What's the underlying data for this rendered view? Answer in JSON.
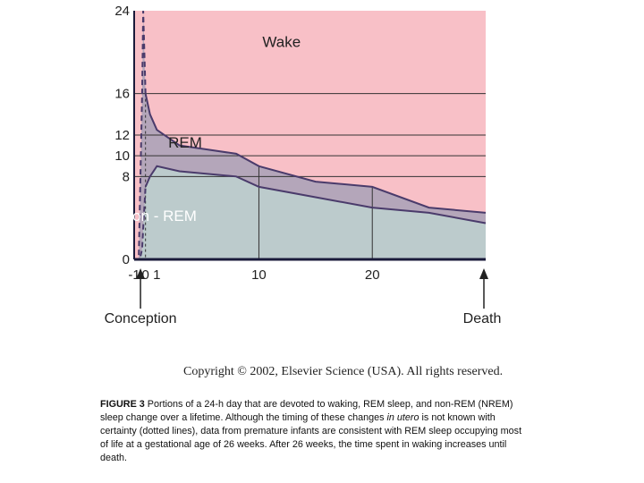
{
  "chart_data": {
    "type": "area",
    "title": "",
    "xlabel": "",
    "ylabel": "",
    "ylim": [
      0,
      24
    ],
    "y_ticks": [
      "24",
      "16",
      "12",
      "10",
      "8",
      "0"
    ],
    "y_tick_values": [
      24,
      16,
      12,
      10,
      8,
      0
    ],
    "x_ticks": [
      "-1",
      "0",
      "1",
      "10",
      "20"
    ],
    "regions": [
      {
        "name": "Wake",
        "color": "#f8c0c7"
      },
      {
        "name": "REM",
        "color": "#b4a6ba"
      },
      {
        "name": "Non - REM",
        "color": "#bccbcc"
      }
    ],
    "x_stage": [
      -1,
      -0.6,
      -0.5,
      -0.3,
      -0.2,
      0,
      0.4,
      1,
      3,
      8,
      10,
      15,
      20,
      25,
      30
    ],
    "sleep_total_upper_boundary": [
      0,
      0,
      5,
      16,
      24,
      16,
      14,
      12.5,
      11,
      10.2,
      9,
      7.5,
      7,
      5,
      4.5
    ],
    "nrem_upper_boundary": [
      0,
      0,
      0,
      1,
      3,
      7,
      8,
      9,
      8.5,
      8,
      7,
      6,
      5,
      4.5,
      3.5
    ],
    "uncertain_segment": "prenatal portion drawn as dotted lines",
    "annotations": [
      "Conception",
      "Death"
    ],
    "grid_y": [
      16,
      12,
      10,
      8
    ],
    "colors": {
      "axis": "#1a1a3a",
      "boundary": "#4a3b6b",
      "grid": "#333333"
    }
  },
  "copyright": "Copyright © 2002, Elsevier Science (USA). All rights reserved.",
  "caption": {
    "label": "FIGURE 3",
    "text_before_italic": " Portions of a 24-h day that are devoted to waking, REM sleep, and non-REM (NREM) sleep change over a lifetime. Although the timing of these changes ",
    "italic": "in utero",
    "text_after_italic": " is not known with certainty (dotted lines), data from premature infants are consistent with REM sleep occupying most of life at a gestational age of 26 weeks. After 26 weeks, the time spent in waking increases until death."
  }
}
